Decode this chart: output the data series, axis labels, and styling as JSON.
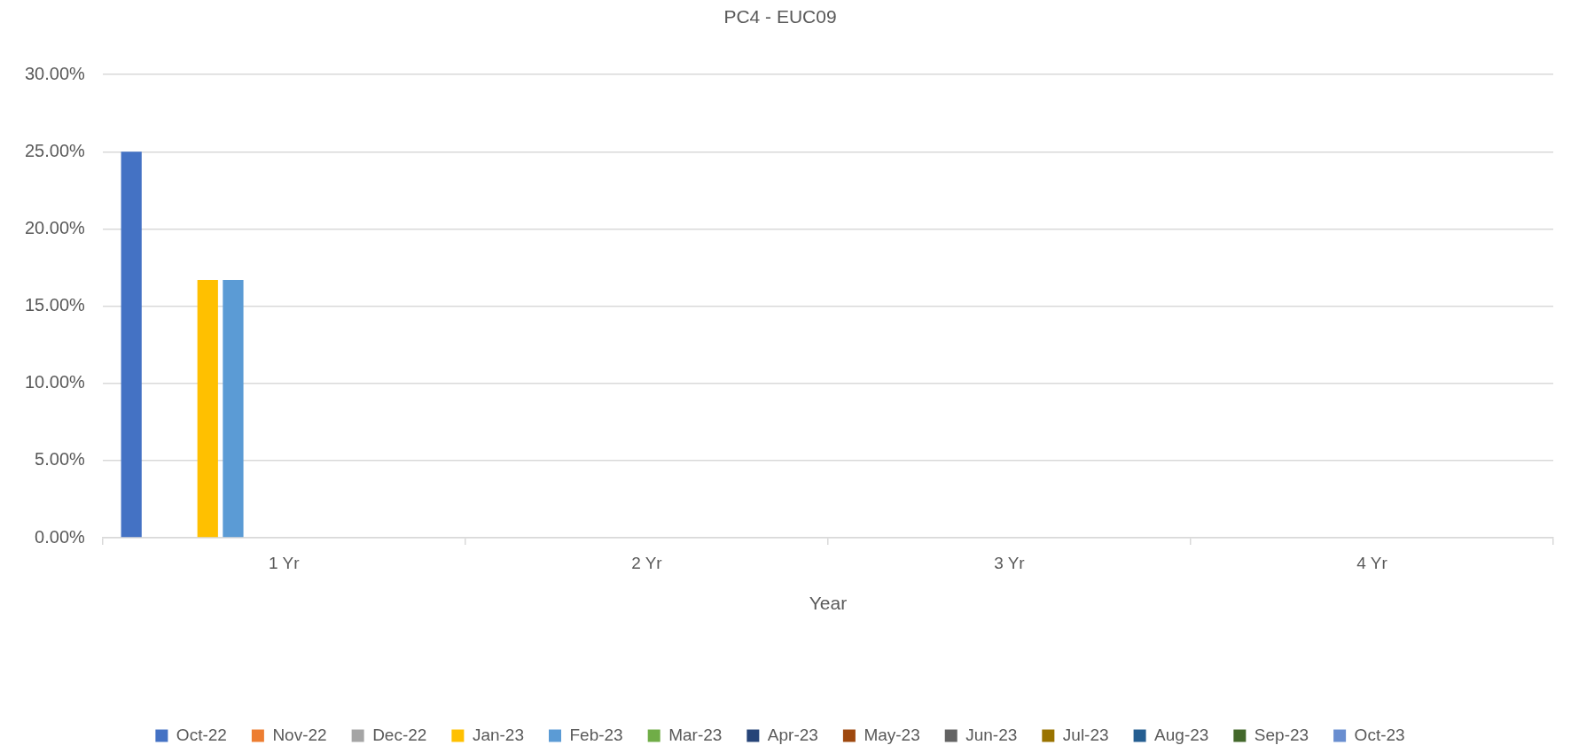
{
  "chart_data": {
    "type": "bar",
    "title": "PC4 - EUC09",
    "xlabel": "Year",
    "categories": [
      "1 Yr",
      "2 Yr",
      "3 Yr",
      "4 Yr"
    ],
    "series": [
      {
        "name": "Oct-22",
        "color": "#4472c4",
        "values": [
          25,
          null,
          null,
          null
        ]
      },
      {
        "name": "Nov-22",
        "color": "#ed7d31",
        "values": [
          null,
          null,
          null,
          null
        ]
      },
      {
        "name": "Dec-22",
        "color": "#a5a5a5",
        "values": [
          null,
          null,
          null,
          null
        ]
      },
      {
        "name": "Jan-23",
        "color": "#ffc000",
        "values": [
          16.7,
          null,
          null,
          null
        ]
      },
      {
        "name": "Feb-23",
        "color": "#5b9bd5",
        "values": [
          16.7,
          null,
          null,
          null
        ]
      },
      {
        "name": "Mar-23",
        "color": "#70ad47",
        "values": [
          null,
          null,
          null,
          null
        ]
      },
      {
        "name": "Apr-23",
        "color": "#264478",
        "values": [
          null,
          null,
          null,
          null
        ]
      },
      {
        "name": "May-23",
        "color": "#9e480e",
        "values": [
          null,
          null,
          null,
          null
        ]
      },
      {
        "name": "Jun-23",
        "color": "#636363",
        "values": [
          null,
          null,
          null,
          null
        ]
      },
      {
        "name": "Jul-23",
        "color": "#997300",
        "values": [
          null,
          null,
          null,
          null
        ]
      },
      {
        "name": "Aug-23",
        "color": "#255e91",
        "values": [
          null,
          null,
          null,
          null
        ]
      },
      {
        "name": "Sep-23",
        "color": "#43682b",
        "values": [
          null,
          null,
          null,
          null
        ]
      },
      {
        "name": "Oct-23",
        "color": "#698ed0",
        "values": [
          null,
          null,
          null,
          null
        ]
      }
    ],
    "ylim": [
      0,
      30
    ],
    "yticks": [
      {
        "value": 0,
        "label": "0.00%"
      },
      {
        "value": 5,
        "label": "5.00%"
      },
      {
        "value": 10,
        "label": "10.00%"
      },
      {
        "value": 15,
        "label": "15.00%"
      },
      {
        "value": 20,
        "label": "20.00%"
      },
      {
        "value": 25,
        "label": "25.00%"
      },
      {
        "value": 30,
        "label": "30.00%"
      }
    ],
    "grid": "y",
    "legend": "bottom"
  }
}
